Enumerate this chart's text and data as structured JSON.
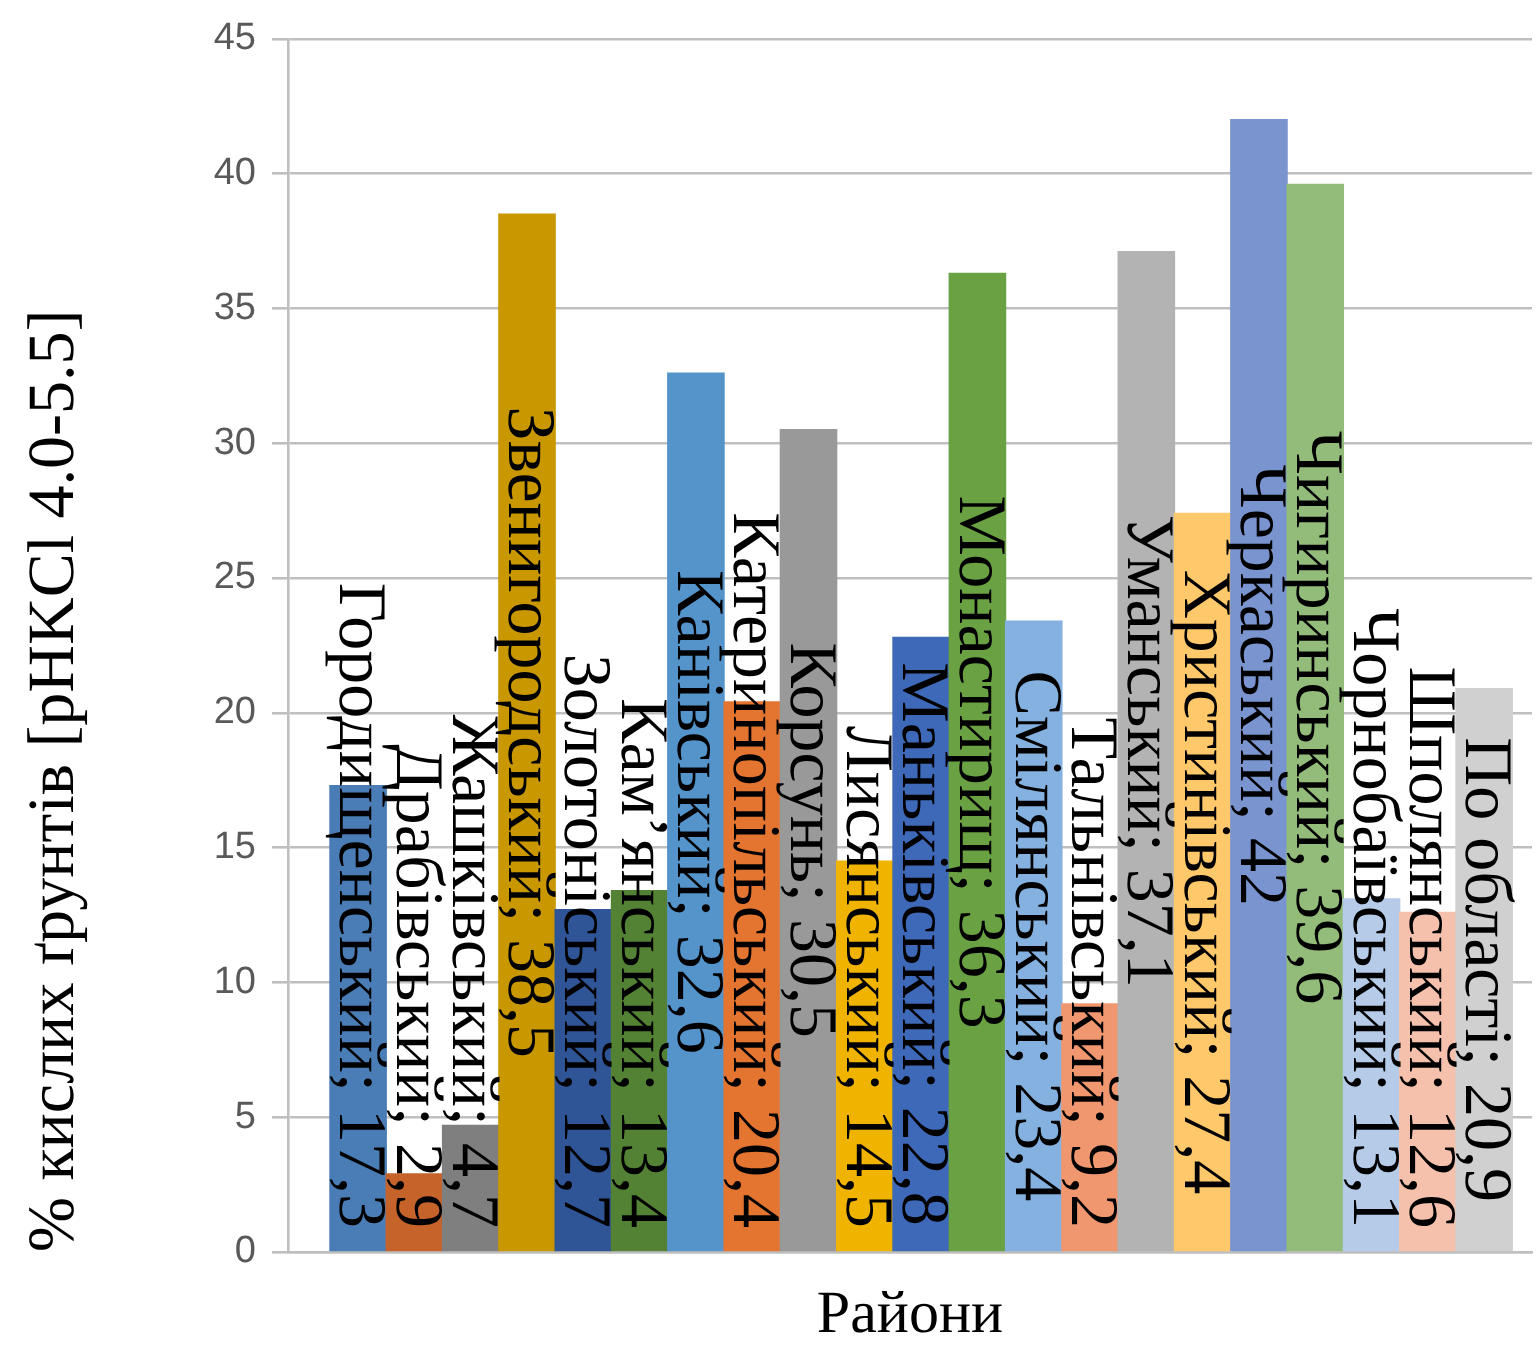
{
  "chart_data": {
    "type": "bar",
    "xlabel": "Райони",
    "ylabel": "% кислих ґрунтів [pHKCl 4.0-5.5]",
    "categories": [
      null,
      null,
      null,
      null,
      null,
      null,
      null,
      null,
      null,
      null,
      null,
      null,
      null,
      null,
      null,
      null,
      null,
      null,
      null,
      null,
      null
    ],
    "values": [
      17.3,
      2.9,
      4.7,
      38.5,
      12.7,
      13.4,
      32.6,
      20.4,
      30.5,
      14.5,
      22.8,
      36.3,
      23.4,
      9.2,
      37.1,
      27.4,
      42,
      39.6,
      13.1,
      12.6,
      20.9
    ],
    "colors": [
      "#4a7db5",
      "#c5632a",
      "#7f7f7f",
      "#c99700",
      "#2f5597",
      "#548235",
      "#5593cb",
      "#e47530",
      "#999999",
      "#f0b400",
      "#3e68b8",
      "#6aa243",
      "#84b1df",
      "#f09770",
      "#b3b3b3",
      "#ffc96b",
      "#7a94cf",
      "#93bc7a",
      "#b5cbe8",
      "#f5c1ac",
      "#d0d0d0"
    ],
    "value_labels": [
      "Городищенський; 17,3",
      "Драбівський; 2,9",
      "Жашківський; 4,7",
      "Звенигородський; 38,5",
      "Золотоніський; 12,7",
      "Кам’янський; 13,4",
      "Канівський; 32,6",
      "Катеринопільський; 20,4",
      "Корсунь; 30,5",
      "Лисянський; 14,5",
      "Маньківський; 22,8",
      "Монастирищ; 36,3",
      "Смілянський; 23,4",
      "Тальнівський; 9,2",
      "Уманський; 37,1",
      "Христинівський; 27,4",
      "Черкаський; 42",
      "Чигиринський; 39,6",
      "Чорнобаївський; 13,1",
      "Шполянський; 12,6",
      "По області; 20,9"
    ],
    "ylim": [
      0,
      45
    ],
    "yticks": [
      0,
      5,
      10,
      15,
      20,
      25,
      30,
      35,
      40,
      45
    ],
    "grid": "y",
    "tick_labels": "y"
  }
}
